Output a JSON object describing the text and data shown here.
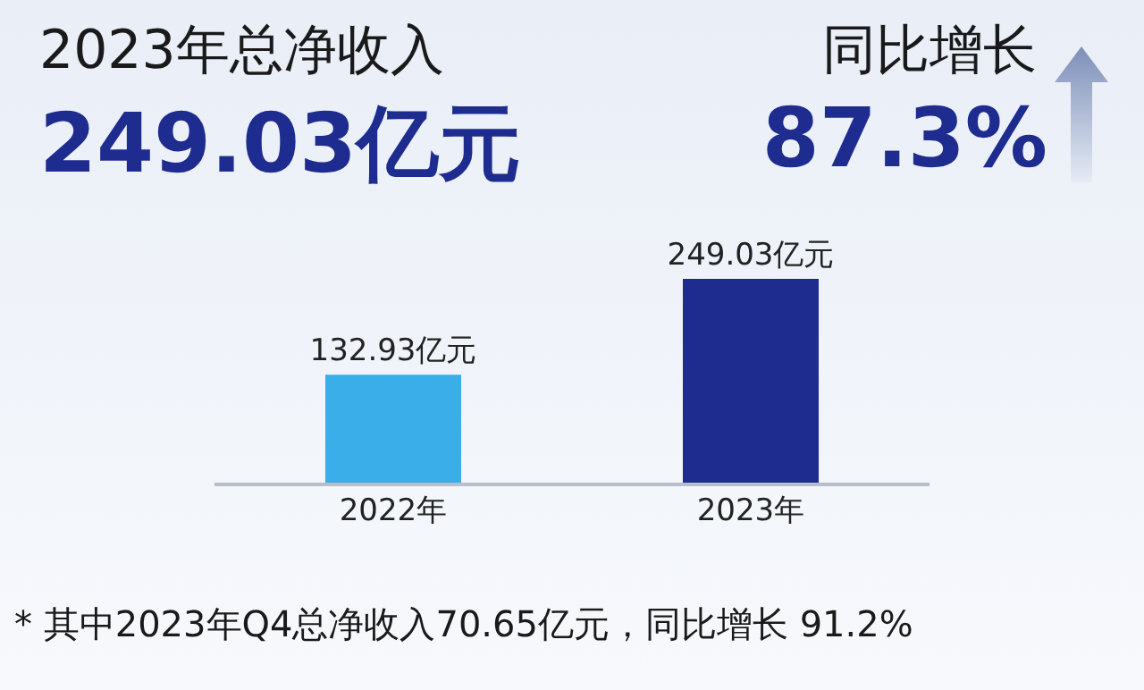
{
  "chart_data": {
    "type": "bar",
    "title": "2023年总净收入",
    "subtitle": "249.03亿元",
    "annotations": [
      "同比增长",
      "87.3%",
      "* 其中2023年Q4总净收入70.65亿元，同比增长 91.2%"
    ],
    "categories": [
      "2022年",
      "2023年"
    ],
    "values": [
      132.93,
      249.03
    ],
    "colors": [
      "#3aaee8",
      "#1e2c8f"
    ],
    "value_labels": [
      "132.93亿元",
      "249.03亿元"
    ]
  }
}
